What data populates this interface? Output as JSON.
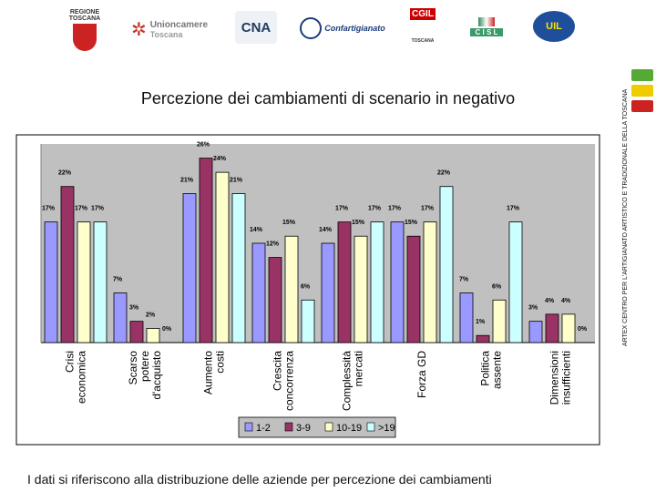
{
  "header": {
    "logos": [
      {
        "name": "regione-toscana-logo",
        "lines": [
          "REGIONE",
          "TOSCANA"
        ]
      },
      {
        "name": "unioncamere-logo",
        "lines": [
          "Unioncamere",
          "Toscana"
        ]
      },
      {
        "name": "cna-logo",
        "lines": [
          "CNA"
        ]
      },
      {
        "name": "confartigianato-logo",
        "lines": [
          "Confartigianato"
        ]
      },
      {
        "name": "cgil-logo",
        "lines": [
          "CGIL",
          "TOSCANA"
        ]
      },
      {
        "name": "cisl-logo",
        "lines": [
          "C I S L"
        ]
      },
      {
        "name": "uil-logo",
        "lines": [
          "UIL"
        ]
      }
    ]
  },
  "side_label": "ARTEX CENTRO PER L'ARTIGIANATO ARTISTICO E TRADIZIONALE DELLA TOSCANA",
  "footer": "I dati si riferiscono alla distribuzione delle aziende per percezione dei cambiamenti",
  "colors": {
    "s1": "#9999ff",
    "s2": "#993366",
    "s3": "#ffffcc",
    "s4": "#ccffff",
    "stripe_green": "#55aa33",
    "stripe_yellow": "#eecc00",
    "stripe_red": "#cc2222"
  },
  "chart_data": {
    "type": "bar",
    "title": "Percezione dei cambiamenti di scenario in negativo",
    "categories": [
      [
        "Crisi",
        "economica"
      ],
      [
        "Scarso",
        "potere",
        "d'acquisto"
      ],
      [
        "Aumento",
        "costi"
      ],
      [
        "Crescita",
        "concorrenza"
      ],
      [
        "Complessità",
        "mercati"
      ],
      [
        "Forza GD"
      ],
      [
        "Politica",
        "assente"
      ],
      [
        "Dimensioni",
        "insufficienti"
      ]
    ],
    "series": [
      {
        "name": "1-2",
        "values": [
          17,
          7,
          21,
          14,
          14,
          17,
          7,
          3
        ]
      },
      {
        "name": "3-9",
        "values": [
          22,
          3,
          26,
          12,
          17,
          15,
          1,
          4
        ]
      },
      {
        "name": "10-19",
        "values": [
          17,
          2,
          24,
          15,
          15,
          17,
          6,
          4
        ]
      },
      {
        "name": ">19",
        "values": [
          17,
          0,
          21,
          6,
          17,
          22,
          17,
          0
        ]
      }
    ],
    "value_suffix": "%",
    "ylim": [
      0,
      28
    ],
    "legend_position": "bottom"
  }
}
